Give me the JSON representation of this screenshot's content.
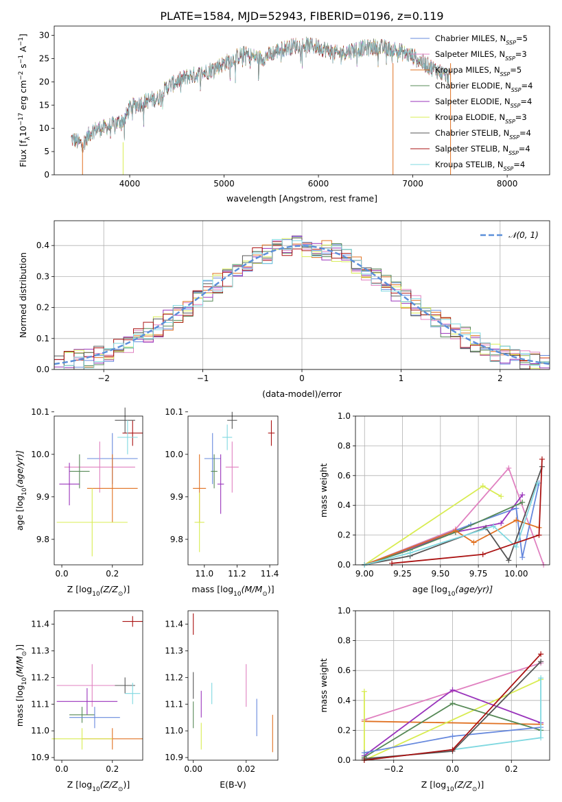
{
  "figure": {
    "title": "PLATE=1584, MJD=52943, FIBERID=0196, z=0.119"
  },
  "colors": {
    "chabrier_miles": "#6688dd",
    "salpeter_miles": "#e080c0",
    "kroupa_miles": "#e07020",
    "chabrier_elodie": "#558855",
    "salpeter_elodie": "#9933bb",
    "kroupa_elodie": "#d8ec50",
    "chabrier_stelib": "#555555",
    "salpeter_stelib": "#aa1111",
    "kroupa_stelib": "#7fd8e0",
    "normal": "#5b8fd9"
  },
  "chart_data": [
    {
      "id": "spectrum",
      "type": "line",
      "xlabel": "wavelength [Angstrom, rest frame]",
      "ylabel_main": "Flux [f",
      "ylabel_tail": "10",
      "ylabel_exp1": "−17",
      "ylabel_mid": " erg cm",
      "ylabel_exp2": "−2",
      "ylabel_mid2": " s",
      "ylabel_exp3": "−1",
      "ylabel_end": " A",
      "ylabel_exp4": "−1",
      "ylabel_end2": "]",
      "xlim": [
        3200,
        8450
      ],
      "ylim": [
        0,
        32
      ],
      "xticks": [
        4000,
        5000,
        6000,
        7000,
        8000
      ],
      "yticks": [
        0,
        5,
        10,
        15,
        20,
        25,
        30
      ],
      "continuum": [
        [
          3380,
          7.8
        ],
        [
          3500,
          6.5
        ],
        [
          3600,
          9.5
        ],
        [
          3800,
          10.5
        ],
        [
          3950,
          12.0
        ],
        [
          4000,
          14.5
        ],
        [
          4200,
          16.0
        ],
        [
          4300,
          16.5
        ],
        [
          4400,
          19.0
        ],
        [
          4600,
          21.0
        ],
        [
          4800,
          22.0
        ],
        [
          5000,
          24.0
        ],
        [
          5200,
          26.0
        ],
        [
          5400,
          25.0
        ],
        [
          5600,
          27.0
        ],
        [
          5800,
          28.0
        ],
        [
          6000,
          27.5
        ],
        [
          6200,
          26.0
        ],
        [
          6400,
          27.0
        ],
        [
          6600,
          27.5
        ],
        [
          6800,
          27.0
        ],
        [
          7000,
          25.5
        ],
        [
          7200,
          23.0
        ],
        [
          7400,
          21.0
        ]
      ],
      "legend": [
        {
          "key": "chabrier_miles",
          "label": "Chabrier MILES, N",
          "n": "=5"
        },
        {
          "key": "salpeter_miles",
          "label": "Salpeter MILES, N",
          "n": "=3"
        },
        {
          "key": "kroupa_miles",
          "label": "Kroupa MILES, N",
          "n": "=5"
        },
        {
          "key": "chabrier_elodie",
          "label": "Chabrier ELODIE, N",
          "n": "=4"
        },
        {
          "key": "salpeter_elodie",
          "label": "Salpeter ELODIE, N",
          "n": "=4"
        },
        {
          "key": "kroupa_elodie",
          "label": "Kroupa ELODIE, N",
          "n": "=3"
        },
        {
          "key": "chabrier_stelib",
          "label": "Chabrier STELIB, N",
          "n": "=4"
        },
        {
          "key": "salpeter_stelib",
          "label": "Salpeter STELIB, N",
          "n": "=4"
        },
        {
          "key": "kroupa_stelib",
          "label": "Kroupa STELIB, N",
          "n": "=4"
        }
      ],
      "legend_sub": "SSP",
      "legend_placement": "top-right"
    },
    {
      "id": "residuals",
      "type": "histogram",
      "xlabel": "(data-model)/error",
      "ylabel": "Normed distribution",
      "xlim": [
        -2.5,
        2.5
      ],
      "ylim": [
        0,
        0.48
      ],
      "xticks": [
        -2,
        -1,
        0,
        1,
        2
      ],
      "xticklabels": [
        "−2",
        "−1",
        "0",
        "1",
        "2"
      ],
      "yticks": [
        0.0,
        0.1,
        0.2,
        0.3,
        0.4
      ],
      "yticklabels": [
        "0.0",
        "0.1",
        "0.2",
        "0.3",
        "0.4"
      ],
      "grid": true,
      "bin_width": 0.1,
      "bin_start": -2.5,
      "legend_label": "𝒩(0, 1)",
      "legend_placement": "top-right"
    },
    {
      "id": "age_vs_Z",
      "type": "scatter",
      "xlabel": "Z [log",
      "xlabel_sub": "10",
      "xlabel_rest": "(Z/Z",
      "xlabel_sun": "⊙",
      "xlabel_end": ")]",
      "ylabel": "age  [log",
      "ylabel_sub": "10",
      "ylabel_rest": "(age/yr)]",
      "xlim": [
        -0.03,
        0.32
      ],
      "ylim": [
        9.74,
        10.09
      ],
      "xticks": [
        0.0,
        0.2
      ],
      "xticklabels": [
        "0.0",
        "0.2"
      ],
      "yticks": [
        9.8,
        9.9,
        10.0,
        10.1
      ],
      "yticklabels": [
        "9.8",
        "9.9",
        "10.0",
        "10.1"
      ],
      "points": [
        {
          "key": "salpeter_stelib",
          "x": 0.28,
          "y": 10.05,
          "xerr": 0.04,
          "yerr": 0.03
        },
        {
          "key": "chabrier_stelib",
          "x": 0.25,
          "y": 10.08,
          "xerr": 0.04,
          "yerr": 0.03
        },
        {
          "key": "kroupa_stelib",
          "x": 0.26,
          "y": 10.04,
          "xerr": 0.04,
          "yerr": 0.04
        },
        {
          "key": "chabrier_miles",
          "x": 0.2,
          "y": 9.99,
          "xerr": 0.1,
          "yerr": 0.06
        },
        {
          "key": "salpeter_miles",
          "x": 0.15,
          "y": 9.97,
          "xerr": 0.14,
          "yerr": 0.06
        },
        {
          "key": "chabrier_elodie",
          "x": 0.07,
          "y": 9.96,
          "xerr": 0.04,
          "yerr": 0.04
        },
        {
          "key": "salpeter_elodie",
          "x": 0.03,
          "y": 9.93,
          "xerr": 0.04,
          "yerr": 0.05
        },
        {
          "key": "kroupa_miles",
          "x": 0.2,
          "y": 9.92,
          "xerr": 0.1,
          "yerr": 0.08
        },
        {
          "key": "kroupa_elodie",
          "x": 0.12,
          "y": 9.84,
          "xerr": 0.14,
          "yerr": 0.08
        }
      ]
    },
    {
      "id": "age_vs_mass",
      "type": "scatter",
      "xlabel": "mass [log",
      "xlabel_sub": "10",
      "xlabel_rest": "(M/M",
      "xlabel_sun": "⊙",
      "xlabel_end": ")]",
      "xlim": [
        10.9,
        11.45
      ],
      "ylim": [
        9.74,
        10.09
      ],
      "xticks": [
        11.0,
        11.2,
        11.4
      ],
      "xticklabels": [
        "11.0",
        "11.2",
        "11.4"
      ],
      "yticks": [
        9.8,
        9.9,
        10.0,
        10.1
      ],
      "yticklabels": [
        "9.8",
        "9.9",
        "10.0",
        "10.1"
      ],
      "points": [
        {
          "key": "salpeter_stelib",
          "x": 11.41,
          "y": 10.05,
          "xerr": 0.02,
          "yerr": 0.03
        },
        {
          "key": "chabrier_stelib",
          "x": 11.17,
          "y": 10.08,
          "xerr": 0.03,
          "yerr": 0.02
        },
        {
          "key": "kroupa_stelib",
          "x": 11.14,
          "y": 10.04,
          "xerr": 0.03,
          "yerr": 0.03
        },
        {
          "key": "chabrier_miles",
          "x": 11.05,
          "y": 9.99,
          "xerr": 0.05,
          "yerr": 0.06
        },
        {
          "key": "salpeter_miles",
          "x": 11.17,
          "y": 9.97,
          "xerr": 0.04,
          "yerr": 0.06
        },
        {
          "key": "chabrier_elodie",
          "x": 11.06,
          "y": 9.96,
          "xerr": 0.02,
          "yerr": 0.04
        },
        {
          "key": "salpeter_elodie",
          "x": 11.1,
          "y": 9.93,
          "xerr": 0.02,
          "yerr": 0.07
        },
        {
          "key": "kroupa_miles",
          "x": 10.97,
          "y": 9.92,
          "xerr": 0.04,
          "yerr": 0.08
        },
        {
          "key": "kroupa_elodie",
          "x": 10.97,
          "y": 9.84,
          "xerr": 0.03,
          "yerr": 0.07
        }
      ]
    },
    {
      "id": "weight_vs_age",
      "type": "line",
      "xlabel": "age  [log",
      "xlabel_sub": "10",
      "xlabel_rest": "(age/yr)]",
      "ylabel": "mass weight",
      "xlim": [
        8.94,
        10.22
      ],
      "ylim": [
        0,
        1
      ],
      "xticks": [
        9.0,
        9.25,
        9.5,
        9.75,
        10.0
      ],
      "xticklabels": [
        "9.00",
        "9.25",
        "9.50",
        "9.75",
        "10.00"
      ],
      "yticks": [
        0.0,
        0.2,
        0.4,
        0.6,
        0.8,
        1.0
      ],
      "yticklabels": [
        "0.0",
        "0.2",
        "0.4",
        "0.6",
        "0.8",
        "1.0"
      ],
      "grid": true,
      "series": [
        {
          "key": "kroupa_elodie",
          "x": [
            9.0,
            9.78,
            9.9
          ],
          "y": [
            0.0,
            0.53,
            0.46
          ]
        },
        {
          "key": "salpeter_miles",
          "x": [
            9.0,
            9.6,
            9.95,
            10.18
          ],
          "y": [
            0.0,
            0.24,
            0.65,
            0.0
          ]
        },
        {
          "key": "salpeter_elodie",
          "x": [
            9.0,
            9.6,
            9.9,
            10.04
          ],
          "y": [
            0.0,
            0.22,
            0.28,
            0.47
          ]
        },
        {
          "key": "chabrier_miles",
          "x": [
            9.0,
            9.7,
            10.0,
            10.04,
            10.15
          ],
          "y": [
            0.0,
            0.27,
            0.38,
            0.05,
            0.55
          ]
        },
        {
          "key": "chabrier_elodie",
          "x": [
            9.0,
            9.3,
            9.6,
            10.04
          ],
          "y": [
            0.0,
            0.1,
            0.22,
            0.42
          ]
        },
        {
          "key": "kroupa_miles",
          "x": [
            9.0,
            9.6,
            9.72,
            10.0,
            10.15
          ],
          "y": [
            0.0,
            0.23,
            0.15,
            0.3,
            0.25
          ]
        },
        {
          "key": "chabrier_stelib",
          "x": [
            9.0,
            9.3,
            9.8,
            9.95,
            10.17
          ],
          "y": [
            0.0,
            0.06,
            0.25,
            0.03,
            0.66
          ]
        },
        {
          "key": "kroupa_stelib",
          "x": [
            9.0,
            9.3,
            9.85,
            10.0,
            10.14
          ],
          "y": [
            0.0,
            0.08,
            0.26,
            0.12,
            0.55
          ]
        },
        {
          "key": "salpeter_stelib",
          "x": [
            9.18,
            9.78,
            10.15,
            10.17
          ],
          "y": [
            0.01,
            0.07,
            0.2,
            0.71
          ]
        }
      ]
    },
    {
      "id": "mass_vs_Z",
      "type": "scatter",
      "xlabel": "Z [log",
      "xlabel_sub": "10",
      "xlabel_rest": "(Z/Z",
      "xlabel_sun": "⊙",
      "xlabel_end": ")]",
      "ylabel": "mass [log",
      "ylabel_sub": "10",
      "ylabel_rest": "(M/M",
      "ylabel_sun": "⊙",
      "ylabel_end": ")]",
      "xlim": [
        -0.03,
        0.32
      ],
      "ylim": [
        10.89,
        11.45
      ],
      "xticks": [
        0.0,
        0.2
      ],
      "xticklabels": [
        "0.0",
        "0.2"
      ],
      "yticks": [
        10.9,
        11.0,
        11.1,
        11.2,
        11.3,
        11.4
      ],
      "yticklabels": [
        "10.9",
        "11.0",
        "11.1",
        "11.2",
        "11.3",
        "11.4"
      ],
      "points": [
        {
          "key": "salpeter_stelib",
          "x": 0.28,
          "y": 11.41,
          "xerr": 0.04,
          "yerr": 0.02
        },
        {
          "key": "salpeter_miles",
          "x": 0.12,
          "y": 11.17,
          "xerr": 0.14,
          "yerr": 0.08
        },
        {
          "key": "chabrier_stelib",
          "x": 0.25,
          "y": 11.17,
          "xerr": 0.04,
          "yerr": 0.03
        },
        {
          "key": "kroupa_stelib",
          "x": 0.28,
          "y": 11.14,
          "xerr": 0.03,
          "yerr": 0.04
        },
        {
          "key": "salpeter_elodie",
          "x": 0.1,
          "y": 11.11,
          "xerr": 0.12,
          "yerr": 0.05
        },
        {
          "key": "chabrier_elodie",
          "x": 0.08,
          "y": 11.06,
          "xerr": 0.05,
          "yerr": 0.03
        },
        {
          "key": "chabrier_miles",
          "x": 0.13,
          "y": 11.05,
          "xerr": 0.1,
          "yerr": 0.04
        },
        {
          "key": "kroupa_miles",
          "x": 0.2,
          "y": 10.97,
          "xerr": 0.12,
          "yerr": 0.04
        },
        {
          "key": "kroupa_elodie",
          "x": 0.08,
          "y": 10.97,
          "xerr": 0.12,
          "yerr": 0.04
        }
      ]
    },
    {
      "id": "mass_vs_ebv",
      "type": "scatter",
      "xlabel": "E(B-V)",
      "xlim": [
        -0.002,
        0.032
      ],
      "ylim": [
        10.89,
        11.45
      ],
      "xticks": [
        0.0,
        0.02
      ],
      "xticklabels": [
        "0.00",
        "0.02"
      ],
      "yticks": [
        10.9,
        11.0,
        11.1,
        11.2,
        11.3,
        11.4
      ],
      "yticklabels": [
        "10.9",
        "11.0",
        "11.1",
        "11.2",
        "11.3",
        "11.4"
      ],
      "points": [
        {
          "key": "salpeter_stelib",
          "x": 0.0,
          "y": 11.4,
          "xerr": 0,
          "yerr": 0.04
        },
        {
          "key": "chabrier_stelib",
          "x": 0.0,
          "y": 11.17,
          "xerr": 0,
          "yerr": 0.05
        },
        {
          "key": "chabrier_elodie",
          "x": 0.0,
          "y": 11.06,
          "xerr": 0,
          "yerr": 0.05
        },
        {
          "key": "salpeter_elodie",
          "x": 0.003,
          "y": 11.1,
          "xerr": 0,
          "yerr": 0.05
        },
        {
          "key": "kroupa_elodie",
          "x": 0.003,
          "y": 10.98,
          "xerr": 0,
          "yerr": 0.05
        },
        {
          "key": "kroupa_stelib",
          "x": 0.007,
          "y": 11.14,
          "xerr": 0,
          "yerr": 0.04
        },
        {
          "key": "salpeter_miles",
          "x": 0.02,
          "y": 11.17,
          "xerr": 0,
          "yerr": 0.08
        },
        {
          "key": "chabrier_miles",
          "x": 0.024,
          "y": 11.05,
          "xerr": 0,
          "yerr": 0.07
        },
        {
          "key": "kroupa_miles",
          "x": 0.03,
          "y": 10.99,
          "xerr": 0,
          "yerr": 0.07
        }
      ]
    },
    {
      "id": "weight_vs_Z",
      "type": "line",
      "xlabel": "Z [log",
      "xlabel_sub": "10",
      "xlabel_rest": "(Z/Z",
      "xlabel_sun": "⊙",
      "xlabel_end": ")]",
      "ylabel": "mass weight",
      "xlim": [
        -0.33,
        0.33
      ],
      "ylim": [
        0,
        1
      ],
      "xticks": [
        -0.2,
        0.0,
        0.2
      ],
      "xticklabels": [
        "−0.2",
        "0.0",
        "0.2"
      ],
      "yticks": [
        0.0,
        0.2,
        0.4,
        0.6,
        0.8,
        1.0
      ],
      "yticklabels": [
        "0.0",
        "0.2",
        "0.4",
        "0.6",
        "0.8",
        "1.0"
      ],
      "grid": true,
      "series": [
        {
          "key": "salpeter_miles",
          "x": [
            -0.3,
            0.3
          ],
          "y": [
            0.27,
            0.65
          ]
        },
        {
          "key": "kroupa_miles",
          "x": [
            -0.3,
            0.3
          ],
          "y": [
            0.26,
            0.24
          ]
        },
        {
          "key": "kroupa_elodie",
          "x": [
            -0.3,
            -0.3,
            0.3
          ],
          "y": [
            0.46,
            0.0,
            0.54
          ]
        },
        {
          "key": "salpeter_elodie",
          "x": [
            -0.3,
            0.0,
            0.3
          ],
          "y": [
            0.03,
            0.47,
            0.25
          ]
        },
        {
          "key": "chabrier_elodie",
          "x": [
            -0.3,
            0.0,
            0.3
          ],
          "y": [
            0.02,
            0.38,
            0.2
          ]
        },
        {
          "key": "chabrier_miles",
          "x": [
            -0.3,
            0.0,
            0.3
          ],
          "y": [
            0.05,
            0.16,
            0.22
          ]
        },
        {
          "key": "kroupa_stelib",
          "x": [
            -0.3,
            0.0,
            0.3,
            0.3
          ],
          "y": [
            0.0,
            0.07,
            0.15,
            0.55
          ]
        },
        {
          "key": "chabrier_stelib",
          "x": [
            -0.3,
            0.0,
            0.3
          ],
          "y": [
            0.01,
            0.06,
            0.66
          ]
        },
        {
          "key": "salpeter_stelib",
          "x": [
            -0.3,
            0.0,
            0.3
          ],
          "y": [
            0.0,
            0.07,
            0.71
          ]
        }
      ]
    }
  ]
}
